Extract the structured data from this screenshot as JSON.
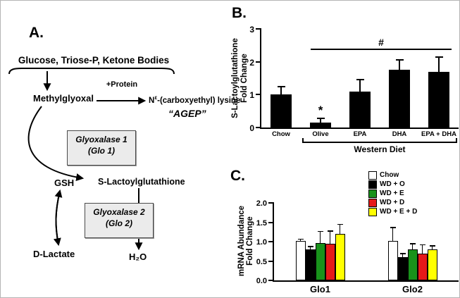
{
  "figure": {
    "panel_a_label": "A.",
    "panel_b_label": "B.",
    "panel_c_label": "C."
  },
  "pathway": {
    "substrates": "Glucose, Triose-P, Ketone Bodies",
    "methylglyoxal": "Methylglyoxal",
    "protein_label": "+Protein",
    "cel_prefix": "N",
    "cel_sup": "ε",
    "cel_suffix": "-(carboxyethyl) lysine",
    "agep": "“AGEP”",
    "glo1_line1": "Glyoxalase 1",
    "glo1_line2": "(Glo 1)",
    "gsh": "GSH",
    "slg": "S-Lactoylglutathione",
    "glo2_line1": "Glyoxalase 2",
    "glo2_line2": "(Glo 2)",
    "d_lactate": "D-Lactate",
    "h2o": "H₂O"
  },
  "chart_data": [
    {
      "id": "panel_B",
      "type": "bar",
      "title": "",
      "ylabel": "S-Lactoylglutathione Fold Change",
      "ylabel_lines": [
        "S-Lactoylglutathione",
        "Fold Change"
      ],
      "categories": [
        "Chow",
        "Olive",
        "EPA",
        "DHA",
        "EPA + DHA"
      ],
      "values": [
        1.0,
        0.15,
        1.1,
        1.75,
        1.7
      ],
      "errors": [
        0.25,
        0.12,
        0.35,
        0.3,
        0.45
      ],
      "ylim": [
        0,
        3
      ],
      "yticks": [
        0,
        1,
        2,
        3
      ],
      "bar_color": "#000000",
      "grid": false,
      "legend": false,
      "annotations": {
        "star": {
          "text": "*",
          "category": "Olive"
        },
        "hash": {
          "text": "#",
          "from_category": "Olive",
          "to_category": "EPA + DHA",
          "y": 2.35
        }
      },
      "group_label": "Western Diet",
      "group_span": [
        "Olive",
        "EPA + DHA"
      ]
    },
    {
      "id": "panel_C",
      "type": "bar",
      "title": "",
      "ylabel": "mRNA Abundance Fold Change",
      "ylabel_lines": [
        "mRNA Abundance",
        "Fold Change"
      ],
      "categories": [
        "Glo1",
        "Glo2"
      ],
      "series": [
        {
          "name": "Chow",
          "color": "#ffffff",
          "values": [
            1.02,
            1.02
          ],
          "errors": [
            0.05,
            0.35
          ]
        },
        {
          "name": "WD + O",
          "color": "#000000",
          "values": [
            0.8,
            0.6
          ],
          "errors": [
            0.08,
            0.1
          ]
        },
        {
          "name": "WD + E",
          "color": "#18921b",
          "values": [
            0.97,
            0.8
          ],
          "errors": [
            0.3,
            0.15
          ]
        },
        {
          "name": "WD + D",
          "color": "#e61919",
          "values": [
            0.95,
            0.7
          ],
          "errors": [
            0.33,
            0.22
          ]
        },
        {
          "name": "WD + E + D",
          "color": "#ffff00",
          "values": [
            1.2,
            0.8
          ],
          "errors": [
            0.25,
            0.1
          ]
        }
      ],
      "ylim": [
        0,
        2
      ],
      "yticks": [
        0,
        0.5,
        1,
        1.5,
        2
      ],
      "grid": false,
      "legend_position": "top-right"
    }
  ]
}
